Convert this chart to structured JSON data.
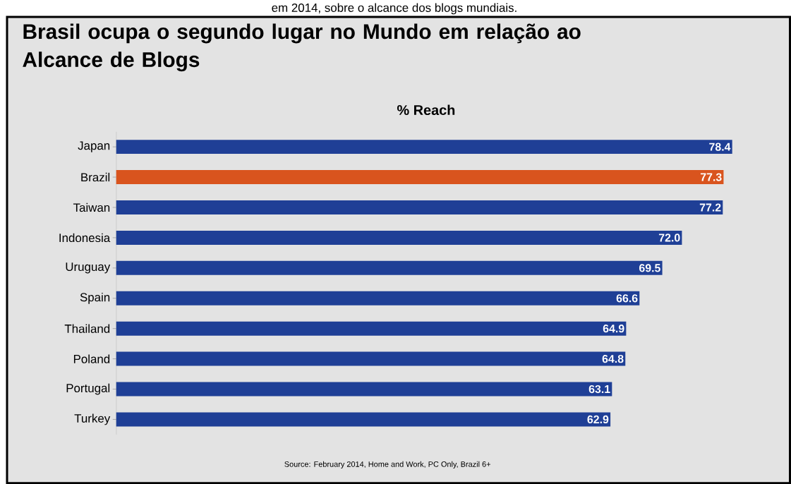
{
  "chart_data": {
    "type": "bar",
    "orientation": "horizontal",
    "title": "Brasil ocupa o segundo lugar no Mundo em relação ao Alcance de Blogs",
    "subtitle": "% Reach",
    "categories": [
      "Japan",
      "Brazil",
      "Taiwan",
      "Indonesia",
      "Uruguay",
      "Spain",
      "Thailand",
      "Poland",
      "Portugal",
      "Turkey"
    ],
    "values": [
      78.4,
      77.3,
      77.2,
      72.0,
      69.5,
      66.6,
      64.9,
      64.8,
      63.1,
      62.9
    ],
    "colors": [
      "#1f3f96",
      "#d9541e",
      "#1f3f96",
      "#1f3f96",
      "#1f3f96",
      "#1f3f96",
      "#1f3f96",
      "#1f3f96",
      "#1f3f96",
      "#1f3f96"
    ],
    "value_labels": [
      "78.4",
      "77.3",
      "77.2",
      "72.0",
      "69.5",
      "66.6",
      "64.9",
      "64.8",
      "63.1",
      "62.9"
    ],
    "tick_labels": "y",
    "annotations": [
      "em 2014, sobre o alcance dos blogs mundiais.",
      "Source: February 2014, Home and Work, PC Only, Brazil 6+"
    ]
  }
}
